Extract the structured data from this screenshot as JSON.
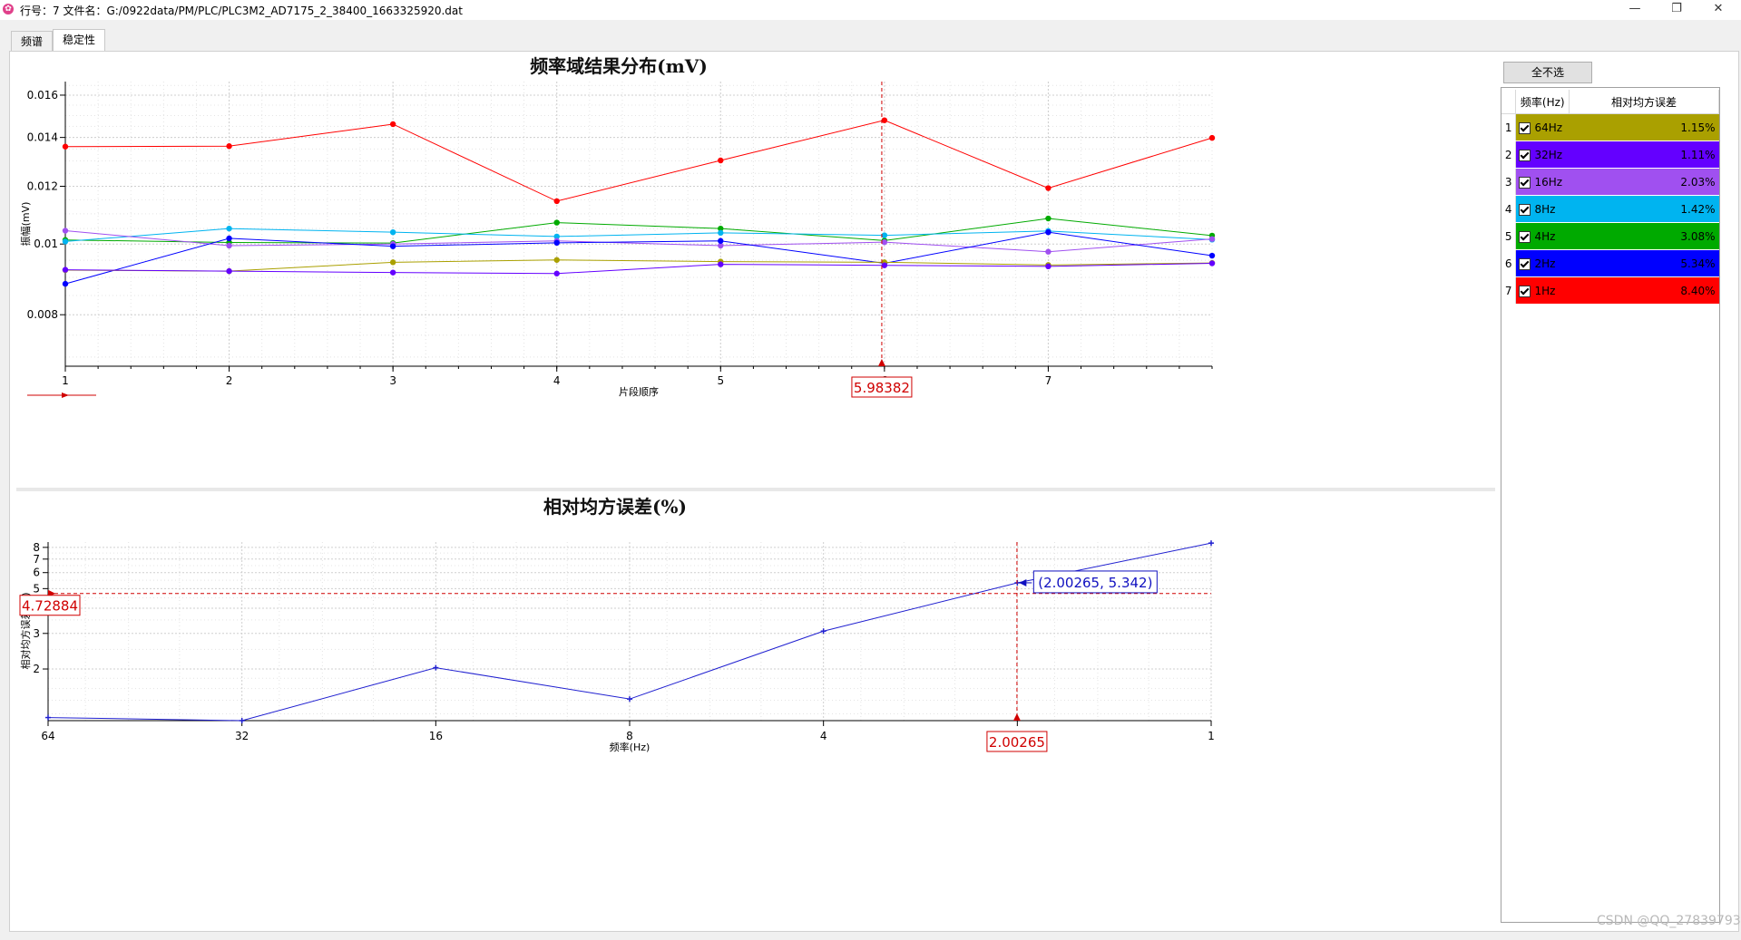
{
  "window": {
    "title": "行号：7  文件名：G:/0922data/PM/PLC/PLC3M2_AD7175_2_38400_1663325920.dat",
    "minimize_icon": "minimize-icon",
    "maximize_icon": "restore-icon",
    "close_icon": "close-icon"
  },
  "tabs": [
    {
      "label": "频谱",
      "active": false
    },
    {
      "label": "稳定性",
      "active": true
    }
  ],
  "side_panel": {
    "deselect_all_label": "全不选",
    "col_freq": "频率(Hz)",
    "col_error": "相对均方误差",
    "rows": [
      {
        "index": "1",
        "freq": "64Hz",
        "error": "1.15%",
        "color": "#aaa000",
        "checked": true,
        "text_color": "#000000"
      },
      {
        "index": "2",
        "freq": "32Hz",
        "error": "1.11%",
        "color": "#6400ff",
        "checked": true,
        "text_color": "#000000"
      },
      {
        "index": "3",
        "freq": "16Hz",
        "error": "2.03%",
        "color": "#a050f0",
        "checked": true,
        "text_color": "#000000"
      },
      {
        "index": "4",
        "freq": "8Hz",
        "error": "1.42%",
        "color": "#00b4f0",
        "checked": true,
        "text_color": "#000000"
      },
      {
        "index": "5",
        "freq": "4Hz",
        "error": "3.08%",
        "color": "#00aa00",
        "checked": true,
        "text_color": "#000000"
      },
      {
        "index": "6",
        "freq": "2Hz",
        "error": "5.34%",
        "color": "#0000ff",
        "checked": true,
        "text_color": "#000000"
      },
      {
        "index": "7",
        "freq": "1Hz",
        "error": "8.40%",
        "color": "#ff0000",
        "checked": true,
        "text_color": "#000000"
      }
    ]
  },
  "watermark": "CSDN @QQ_278397935",
  "chart_data": [
    {
      "type": "line",
      "title": "频率域结果分布(mV)",
      "xlabel": "片段顺序",
      "ylabel": "振幅(mV)",
      "y_scale": "log",
      "xlim": [
        1,
        8
      ],
      "ylim": [
        0.0068,
        0.0167
      ],
      "x_ticks": [
        1,
        2,
        3,
        4,
        5,
        6,
        7
      ],
      "y_ticks": [
        "0.016",
        "0.014",
        "0.012",
        "0.01",
        "0.008"
      ],
      "grid": true,
      "x": [
        1,
        2,
        3,
        4,
        5,
        6,
        7,
        8
      ],
      "series": [
        {
          "color": "#ff0000",
          "values": [
            0.0136,
            0.01362,
            0.0146,
            0.01145,
            0.01302,
            0.01478,
            0.01193,
            0.01398
          ]
        },
        {
          "color": "#00aa00",
          "values": [
            0.01013,
            0.01005,
            0.01003,
            0.0107,
            0.0105,
            0.01011,
            0.01084,
            0.01027
          ]
        },
        {
          "color": "#00b4f0",
          "values": [
            0.01008,
            0.0105,
            0.01038,
            0.01024,
            0.01036,
            0.01028,
            0.01042,
            0.01014
          ]
        },
        {
          "color": "#a050f0",
          "values": [
            0.01043,
            0.00995,
            0.01,
            0.0101,
            0.00995,
            0.01006,
            0.00976,
            0.01016
          ]
        },
        {
          "color": "#0000ff",
          "values": [
            0.00882,
            0.01018,
            0.00993,
            0.01004,
            0.0101,
            0.00941,
            0.01038,
            0.00964
          ]
        },
        {
          "color": "#aaa000",
          "values": [
            0.00921,
            0.00918,
            0.00944,
            0.00951,
            0.00946,
            0.00944,
            0.00936,
            0.00942
          ]
        },
        {
          "color": "#6400ff",
          "values": [
            0.00922,
            0.00918,
            0.00914,
            0.00911,
            0.00938,
            0.00935,
            0.00932,
            0.00941
          ]
        }
      ],
      "cursor": {
        "x": 5.98382,
        "label": "5.98382",
        "color": "#d00000"
      }
    },
    {
      "type": "line",
      "title": "相对均方误差(%)",
      "xlabel": "频率(Hz)",
      "ylabel": "相对均方误差(%)",
      "x_scale": "log",
      "x_reversed": true,
      "y_scale": "log",
      "xlim": [
        64,
        1
      ],
      "ylim": [
        1.11,
        8.5
      ],
      "x_ticks": [
        64,
        32,
        16,
        8,
        4,
        2,
        1
      ],
      "y_ticks": [
        8,
        7,
        6,
        5,
        4,
        3,
        2
      ],
      "grid": true,
      "series": [
        {
          "color": "#2020d0",
          "x": [
            64,
            32,
            16,
            8,
            4,
            2,
            1
          ],
          "values": [
            1.15,
            1.11,
            2.03,
            1.42,
            3.08,
            5.34,
            8.4
          ]
        }
      ],
      "cursor_x": {
        "value": 2.00265,
        "label": "2.00265"
      },
      "cursor_y": {
        "value": 4.72884,
        "label": "4.72884"
      },
      "readout": "(2.00265, 5.342)"
    }
  ]
}
